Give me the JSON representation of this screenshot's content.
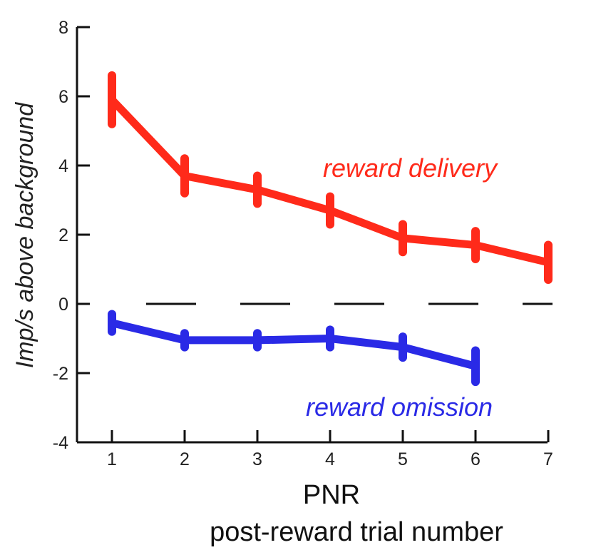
{
  "chart_data": {
    "type": "line",
    "xlabel": "PNR",
    "xlabel_sub": "post-reward trial number",
    "ylabel": "Imp/s above background",
    "x_ticks": [
      1,
      2,
      3,
      4,
      5,
      6,
      7
    ],
    "y_ticks": [
      8,
      6,
      4,
      2,
      0,
      -2,
      -4
    ],
    "ylim": [
      -4,
      8
    ],
    "xlim": [
      1,
      7
    ],
    "reference_line": {
      "y": 0,
      "style": "dashed"
    },
    "series": [
      {
        "name": "reward delivery",
        "color": "#ff2a1a",
        "x": [
          1,
          2,
          3,
          4,
          5,
          6,
          7
        ],
        "y": [
          5.9,
          3.7,
          3.3,
          2.7,
          1.9,
          1.7,
          1.2
        ],
        "err": [
          0.7,
          0.5,
          0.4,
          0.4,
          0.4,
          0.4,
          0.5
        ]
      },
      {
        "name": "reward omission",
        "color": "#2a2ae6",
        "x": [
          1,
          2,
          3,
          4,
          5,
          6
        ],
        "y": [
          -0.55,
          -1.05,
          -1.05,
          -1.0,
          -1.25,
          -1.8
        ],
        "err": [
          0.25,
          0.2,
          0.2,
          0.25,
          0.3,
          0.45
        ]
      }
    ]
  }
}
